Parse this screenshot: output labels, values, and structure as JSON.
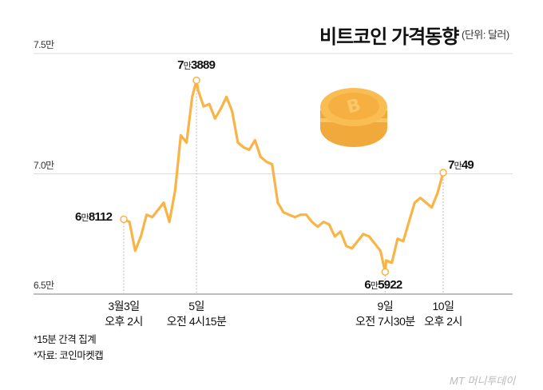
{
  "title": "비트코인 가격동향",
  "unit": "(단위: 달러)",
  "notes": [
    "*15분 간격 집계",
    "*자료: 코인마켓캡"
  ],
  "brand": "MT 머니투데이",
  "chart_data": {
    "type": "line",
    "ylim": [
      65000,
      75000
    ],
    "ytick_labels": [
      "7.5만",
      "7.0만",
      "6.5만"
    ],
    "yticks": [
      75000,
      70000,
      65000
    ],
    "line_color": "#f8b447",
    "grid": "horizontal",
    "x_labels": [
      {
        "t": "03-03 14:00",
        "line1": "3월3일",
        "line2": "오후 2시"
      },
      {
        "t": "03-05 04:15",
        "line1": "5일",
        "line2": "오전 4시15분"
      },
      {
        "t": "03-09 07:30",
        "line1": "9일",
        "line2": "오전 7시30분"
      },
      {
        "t": "03-10 14:00",
        "line1": "10일",
        "line2": "오후 2시"
      }
    ],
    "annotations": [
      {
        "t": "03-03 14:00",
        "value": 68112,
        "big": "6",
        "small": "만",
        "rest": "8112"
      },
      {
        "t": "03-05 04:15",
        "value": 73889,
        "big": "7",
        "small": "만",
        "rest": "3889"
      },
      {
        "t": "03-09 07:30",
        "value": 65922,
        "big": "6",
        "small": "만",
        "rest": "5922"
      },
      {
        "t": "03-10 14:00",
        "value": 70049,
        "big": "7",
        "small": "만",
        "rest": "49"
      }
    ],
    "series": [
      {
        "x": [
          "03-03 14:00",
          "03-03 17:00",
          "03-03 20:00",
          "03-03 23:00",
          "03-04 02:00",
          "03-04 05:00",
          "03-04 08:00",
          "03-04 11:00",
          "03-04 14:00",
          "03-04 17:00",
          "03-04 20:00",
          "03-04 23:00",
          "03-05 02:00",
          "03-05 04:15",
          "03-05 05:00",
          "03-05 08:00",
          "03-05 11:00",
          "03-05 14:00",
          "03-05 17:00",
          "03-05 20:00",
          "03-05 23:00",
          "03-06 02:00",
          "03-06 05:00",
          "03-06 08:00",
          "03-06 11:00",
          "03-06 14:00",
          "03-06 17:00",
          "03-06 20:00",
          "03-06 23:00",
          "03-07 02:00",
          "03-07 05:00",
          "03-07 08:00",
          "03-07 11:00",
          "03-07 14:00",
          "03-07 17:00",
          "03-07 20:00",
          "03-07 23:00",
          "03-08 02:00",
          "03-08 05:00",
          "03-08 08:00",
          "03-08 11:00",
          "03-08 14:00",
          "03-08 17:00",
          "03-08 20:00",
          "03-08 23:00",
          "03-09 02:00",
          "03-09 05:00",
          "03-09 07:30",
          "03-09 08:00",
          "03-09 11:00",
          "03-09 14:00",
          "03-09 17:00",
          "03-09 20:00",
          "03-09 23:00",
          "03-10 02:00",
          "03-10 05:00",
          "03-10 08:00",
          "03-10 11:00",
          "03-10 14:00"
        ],
        "values": [
          68112,
          68000,
          66800,
          67400,
          68300,
          68200,
          68500,
          68800,
          68000,
          69300,
          71600,
          71300,
          73200,
          73889,
          73500,
          72800,
          72900,
          72300,
          72700,
          73200,
          72600,
          71300,
          71100,
          71000,
          71400,
          70700,
          70500,
          70400,
          68800,
          68400,
          68300,
          68200,
          68300,
          68300,
          68000,
          67800,
          68000,
          67900,
          67400,
          67600,
          67000,
          66900,
          67200,
          67500,
          67400,
          67100,
          66800,
          65922,
          66400,
          66300,
          67300,
          67200,
          68000,
          68800,
          69000,
          68800,
          68600,
          69200,
          70049
        ]
      }
    ]
  }
}
